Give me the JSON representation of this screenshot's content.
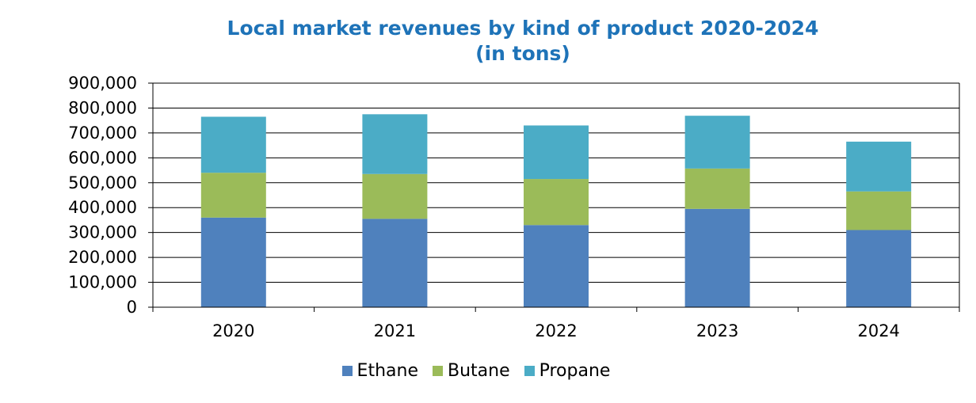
{
  "chart_data": {
    "type": "bar",
    "stacked": true,
    "title": "Local market revenues by kind of product 2020-2024",
    "subtitle": "(in tons)",
    "categories": [
      "2020",
      "2021",
      "2022",
      "2023",
      "2024"
    ],
    "series": [
      {
        "name": "Ethane",
        "color": "#4f81bd",
        "values": [
          360000,
          355000,
          330000,
          395000,
          310000
        ]
      },
      {
        "name": "Butane",
        "color": "#9bbb59",
        "values": [
          180000,
          180000,
          185000,
          162000,
          155000
        ]
      },
      {
        "name": "Propane",
        "color": "#4bacc6",
        "values": [
          225000,
          240000,
          215000,
          212000,
          200000
        ]
      }
    ],
    "ylim": [
      0,
      900000
    ],
    "yticks": [
      "0",
      "100,000",
      "200,000",
      "300,000",
      "400,000",
      "500,000",
      "600,000",
      "700,000",
      "800,000",
      "900,000"
    ],
    "grid": true,
    "legend": "bottom",
    "xlabel": "",
    "ylabel": ""
  }
}
